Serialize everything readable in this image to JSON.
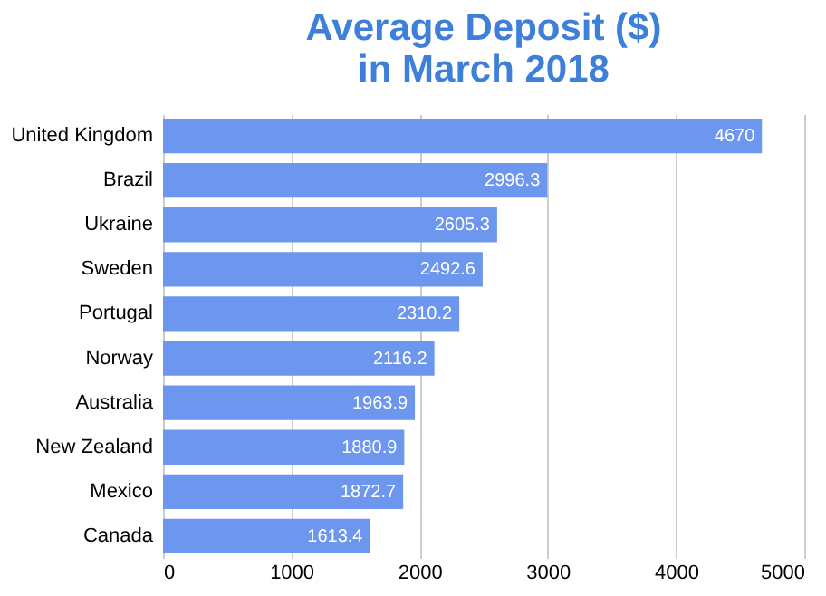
{
  "chart_data": {
    "type": "bar",
    "orientation": "horizontal",
    "title": [
      "Average Deposit ($)",
      "in March 2018"
    ],
    "categories": [
      "United Kingdom",
      "Brazil",
      "Ukraine",
      "Sweden",
      "Portugal",
      "Norway",
      "Australia",
      "New Zealand",
      "Mexico",
      "Canada"
    ],
    "values": [
      4670,
      2996.3,
      2605.3,
      2492.6,
      2310.2,
      2116.2,
      1963.9,
      1880.9,
      1872.7,
      1613.4
    ],
    "color": "#6d96ee",
    "xlim": [
      0,
      5000
    ],
    "xticks": [
      0,
      1000,
      2000,
      3000,
      4000,
      5000
    ],
    "grid": "x",
    "data_labels": true
  }
}
